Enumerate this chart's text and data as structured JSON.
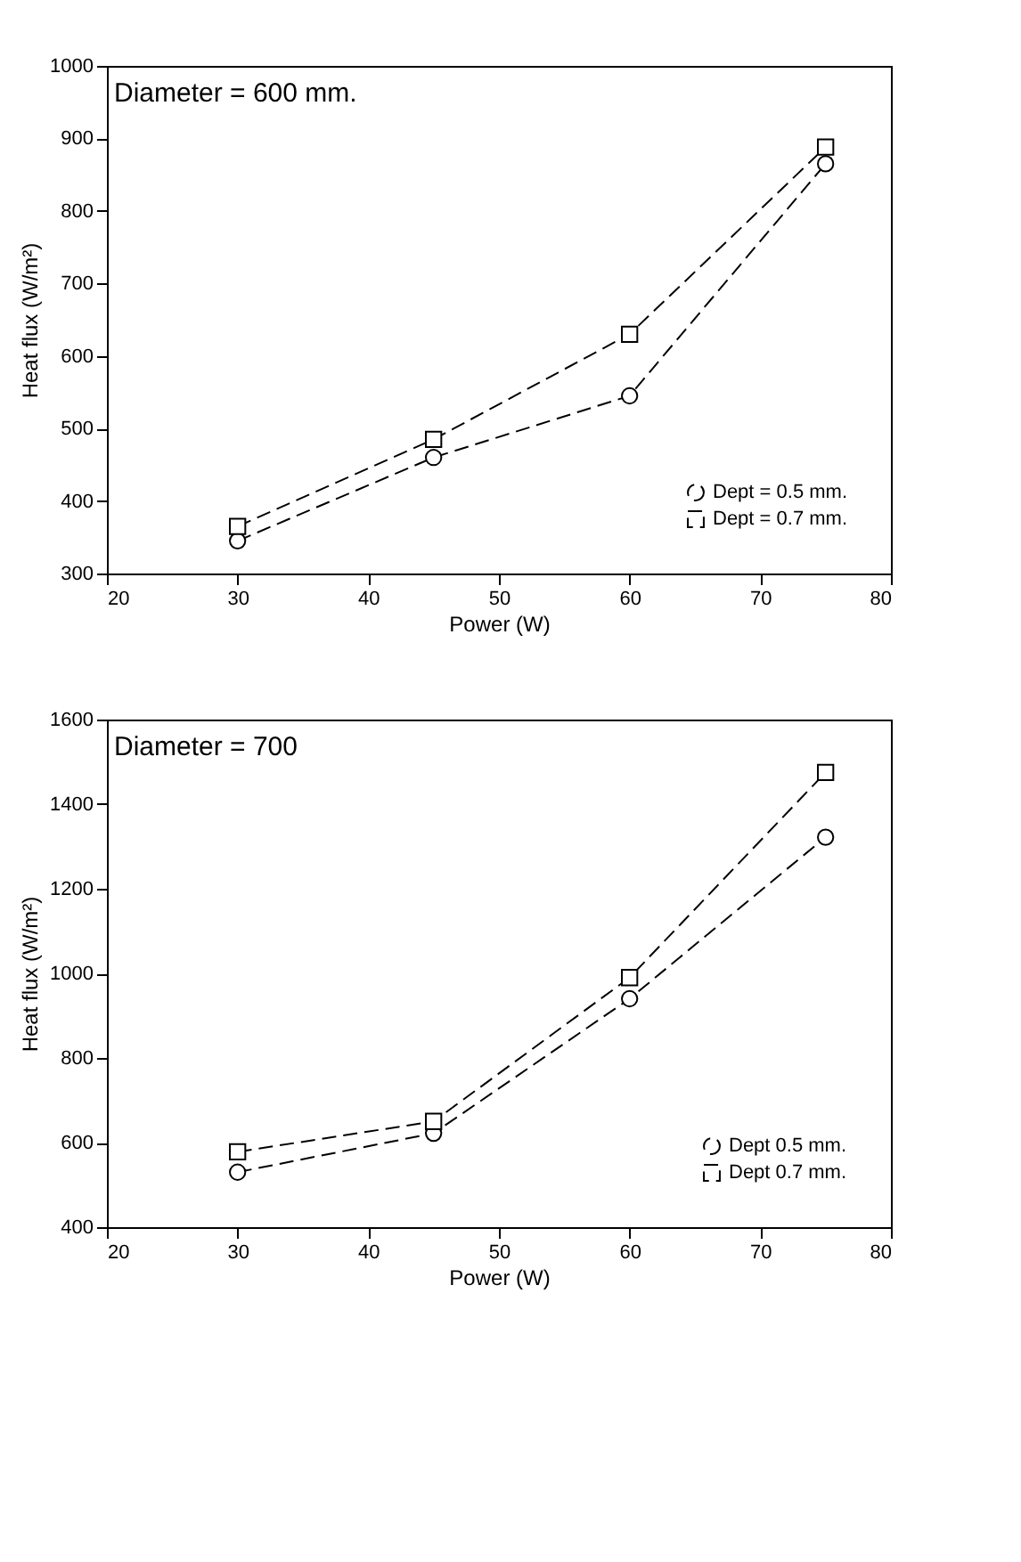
{
  "chart_data": [
    {
      "type": "line",
      "x": [
        30,
        45,
        60,
        75
      ],
      "xlabel": "Power (W)",
      "ylabel": "Heat flux (W/m²)",
      "annotations": [
        "Diameter = 600 mm."
      ],
      "xlim": [
        20,
        80
      ],
      "xticks": [
        20,
        30,
        40,
        50,
        60,
        70,
        80
      ],
      "ylim": [
        300,
        1000
      ],
      "yticks": [
        300,
        400,
        500,
        600,
        700,
        800,
        900,
        1000
      ],
      "grid": false,
      "legend": "bottom right",
      "line_style": "dashed",
      "series": [
        {
          "name": "Dept = 0.5 mm.",
          "color": "#000000",
          "marker": "circle",
          "values": [
            345,
            460,
            545,
            865
          ]
        },
        {
          "name": "Dept = 0.7 mm.",
          "color": "#000000",
          "marker": "square",
          "values": [
            365,
            485,
            630,
            888
          ]
        }
      ]
    },
    {
      "type": "line",
      "x": [
        30,
        45,
        60,
        75
      ],
      "xlabel": "Power (W)",
      "ylabel": "Heat flux (W/m²)",
      "annotations": [
        "Diameter = 700"
      ],
      "xlim": [
        20,
        80
      ],
      "xticks": [
        20,
        30,
        40,
        50,
        60,
        70,
        80
      ],
      "ylim": [
        400,
        1600
      ],
      "yticks": [
        400,
        600,
        800,
        1000,
        1200,
        1400,
        1600
      ],
      "grid": false,
      "legend": "bottom right",
      "line_style": "dashed",
      "series": [
        {
          "name": "Dept 0.5 mm.",
          "color": "#000000",
          "marker": "circle",
          "values": [
            530,
            622,
            940,
            1322
          ]
        },
        {
          "name": "Dept 0.7 mm.",
          "color": "#000000",
          "marker": "square",
          "values": [
            578,
            650,
            990,
            1475
          ]
        }
      ]
    }
  ]
}
